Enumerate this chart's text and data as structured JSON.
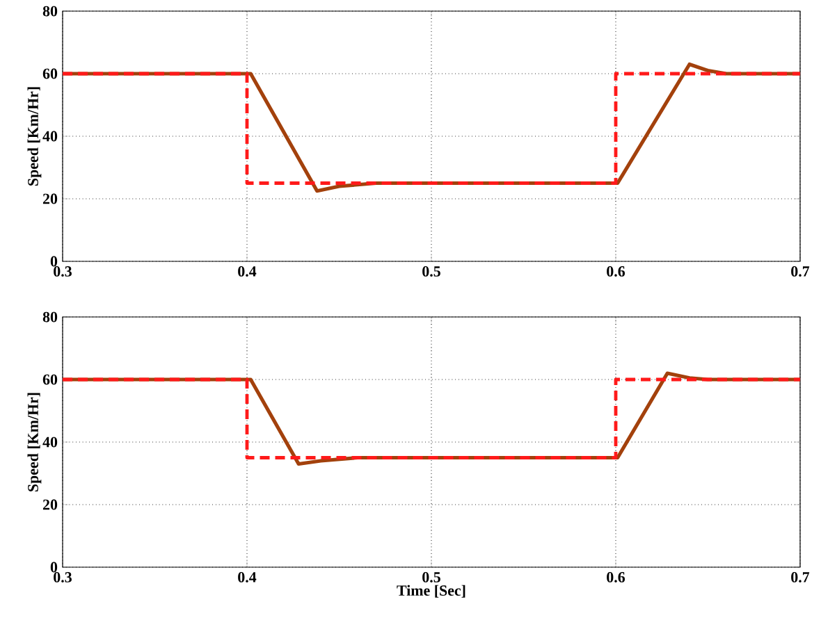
{
  "chart_data": [
    {
      "type": "line",
      "ylabel": "Speed [Km/Hr]",
      "xlim": [
        0.3,
        0.7
      ],
      "ylim": [
        0,
        80
      ],
      "xticks": [
        0.3,
        0.4,
        0.5,
        0.6,
        0.7
      ],
      "yticks": [
        0,
        20,
        40,
        60,
        80
      ],
      "grid": true,
      "series": [
        {
          "color": "#a3410c",
          "line_style": "solid",
          "x": [
            0.3,
            0.402,
            0.438,
            0.45,
            0.47,
            0.5,
            0.601,
            0.64,
            0.65,
            0.66,
            0.7
          ],
          "values": [
            60,
            60,
            22.5,
            24,
            25,
            25,
            25,
            63,
            61,
            60,
            60
          ]
        },
        {
          "color": "#ff1a1a",
          "line_style": "dashed",
          "x": [
            0.3,
            0.4,
            0.4,
            0.6,
            0.6,
            0.7
          ],
          "values": [
            60,
            60,
            25,
            25,
            60,
            60
          ]
        }
      ]
    },
    {
      "type": "line",
      "xlabel": "Time [Sec]",
      "ylabel": "Speed [Km/Hr]",
      "xlim": [
        0.3,
        0.7
      ],
      "ylim": [
        0,
        80
      ],
      "xticks": [
        0.3,
        0.4,
        0.5,
        0.6,
        0.7
      ],
      "yticks": [
        0,
        20,
        40,
        60,
        80
      ],
      "grid": true,
      "series": [
        {
          "color": "#a3410c",
          "line_style": "solid",
          "x": [
            0.3,
            0.402,
            0.428,
            0.44,
            0.46,
            0.5,
            0.601,
            0.628,
            0.64,
            0.65,
            0.7
          ],
          "values": [
            60,
            60,
            33,
            34,
            35,
            35,
            35,
            62,
            60.5,
            60,
            60
          ]
        },
        {
          "color": "#ff1a1a",
          "line_style": "dashed",
          "x": [
            0.3,
            0.4,
            0.4,
            0.6,
            0.6,
            0.7
          ],
          "values": [
            60,
            60,
            35,
            35,
            60,
            60
          ]
        }
      ]
    }
  ]
}
